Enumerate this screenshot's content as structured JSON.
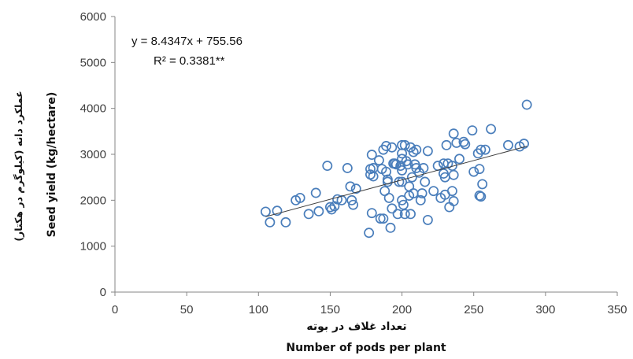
{
  "chart_data": {
    "type": "scatter",
    "xlim": [
      0,
      350
    ],
    "ylim": [
      0,
      6000
    ],
    "x_ticks": [
      "0",
      "50",
      "100",
      "150",
      "200",
      "250",
      "300",
      "350"
    ],
    "y_ticks": [
      "0",
      "1000",
      "2000",
      "3000",
      "4000",
      "5000",
      "6000"
    ],
    "xlabel_fa": "تعداد غلاف در بوته",
    "xlabel_en": "Number of pods per plant",
    "ylabel_en": "Seed yield (kg/hectare)",
    "ylabel_fa": "عملکرد دانه (کیلوگرم در هکتار)",
    "equation": "y = 8.4347x + 755.56",
    "r_squared": "R² = 0.3381**",
    "grid": false,
    "marker_color": "#4a7ebb",
    "trendline_color": "#404040",
    "trendline": {
      "slope": 8.4347,
      "intercept": 755.56,
      "x_range": [
        105,
        287
      ]
    },
    "points": [
      [
        105,
        1750
      ],
      [
        108,
        1520
      ],
      [
        113,
        1770
      ],
      [
        119,
        1520
      ],
      [
        126,
        2000
      ],
      [
        129,
        2050
      ],
      [
        135,
        1700
      ],
      [
        140,
        2160
      ],
      [
        142,
        1760
      ],
      [
        148,
        2750
      ],
      [
        150,
        1850
      ],
      [
        151,
        1800
      ],
      [
        153,
        1870
      ],
      [
        155,
        2020
      ],
      [
        158,
        2000
      ],
      [
        162,
        2700
      ],
      [
        164,
        2300
      ],
      [
        165,
        2000
      ],
      [
        166,
        1900
      ],
      [
        168,
        2250
      ],
      [
        177,
        1290
      ],
      [
        178,
        2560
      ],
      [
        178,
        2680
      ],
      [
        179,
        1720
      ],
      [
        179,
        2990
      ],
      [
        180,
        2520
      ],
      [
        180,
        2700
      ],
      [
        184,
        2870
      ],
      [
        185,
        1600
      ],
      [
        186,
        2680
      ],
      [
        187,
        3100
      ],
      [
        187,
        1600
      ],
      [
        188,
        2200
      ],
      [
        189,
        3180
      ],
      [
        189,
        2620
      ],
      [
        190,
        2400
      ],
      [
        190,
        2450
      ],
      [
        191,
        2050
      ],
      [
        192,
        1400
      ],
      [
        193,
        3150
      ],
      [
        193,
        1820
      ],
      [
        194,
        2800
      ],
      [
        195,
        2800
      ],
      [
        196,
        2780
      ],
      [
        197,
        1700
      ],
      [
        198,
        2400
      ],
      [
        199,
        2750
      ],
      [
        200,
        3200
      ],
      [
        200,
        3020
      ],
      [
        200,
        2900
      ],
      [
        200,
        2650
      ],
      [
        200,
        2400
      ],
      [
        200,
        2000
      ],
      [
        201,
        1900
      ],
      [
        202,
        3200
      ],
      [
        202,
        1700
      ],
      [
        203,
        2850
      ],
      [
        204,
        2780
      ],
      [
        205,
        2300
      ],
      [
        205,
        2100
      ],
      [
        206,
        3150
      ],
      [
        206,
        1700
      ],
      [
        207,
        2500
      ],
      [
        208,
        3050
      ],
      [
        208,
        2150
      ],
      [
        209,
        2780
      ],
      [
        210,
        3100
      ],
      [
        210,
        2700
      ],
      [
        212,
        2600
      ],
      [
        213,
        2000
      ],
      [
        214,
        2150
      ],
      [
        215,
        2700
      ],
      [
        216,
        2400
      ],
      [
        218,
        3070
      ],
      [
        218,
        1570
      ],
      [
        222,
        2200
      ],
      [
        225,
        2750
      ],
      [
        227,
        2050
      ],
      [
        229,
        2800
      ],
      [
        229,
        2580
      ],
      [
        230,
        2500
      ],
      [
        230,
        2120
      ],
      [
        231,
        3200
      ],
      [
        232,
        2800
      ],
      [
        233,
        1850
      ],
      [
        235,
        2750
      ],
      [
        235,
        2200
      ],
      [
        236,
        3450
      ],
      [
        236,
        2550
      ],
      [
        236,
        1980
      ],
      [
        238,
        3250
      ],
      [
        240,
        2900
      ],
      [
        243,
        3270
      ],
      [
        244,
        3220
      ],
      [
        249,
        3520
      ],
      [
        250,
        2620
      ],
      [
        253,
        3020
      ],
      [
        254,
        2680
      ],
      [
        254,
        2100
      ],
      [
        255,
        2080
      ],
      [
        255,
        3100
      ],
      [
        256,
        2350
      ],
      [
        258,
        3100
      ],
      [
        262,
        3550
      ],
      [
        274,
        3200
      ],
      [
        282,
        3170
      ],
      [
        285,
        3230
      ],
      [
        287,
        4080
      ]
    ]
  }
}
